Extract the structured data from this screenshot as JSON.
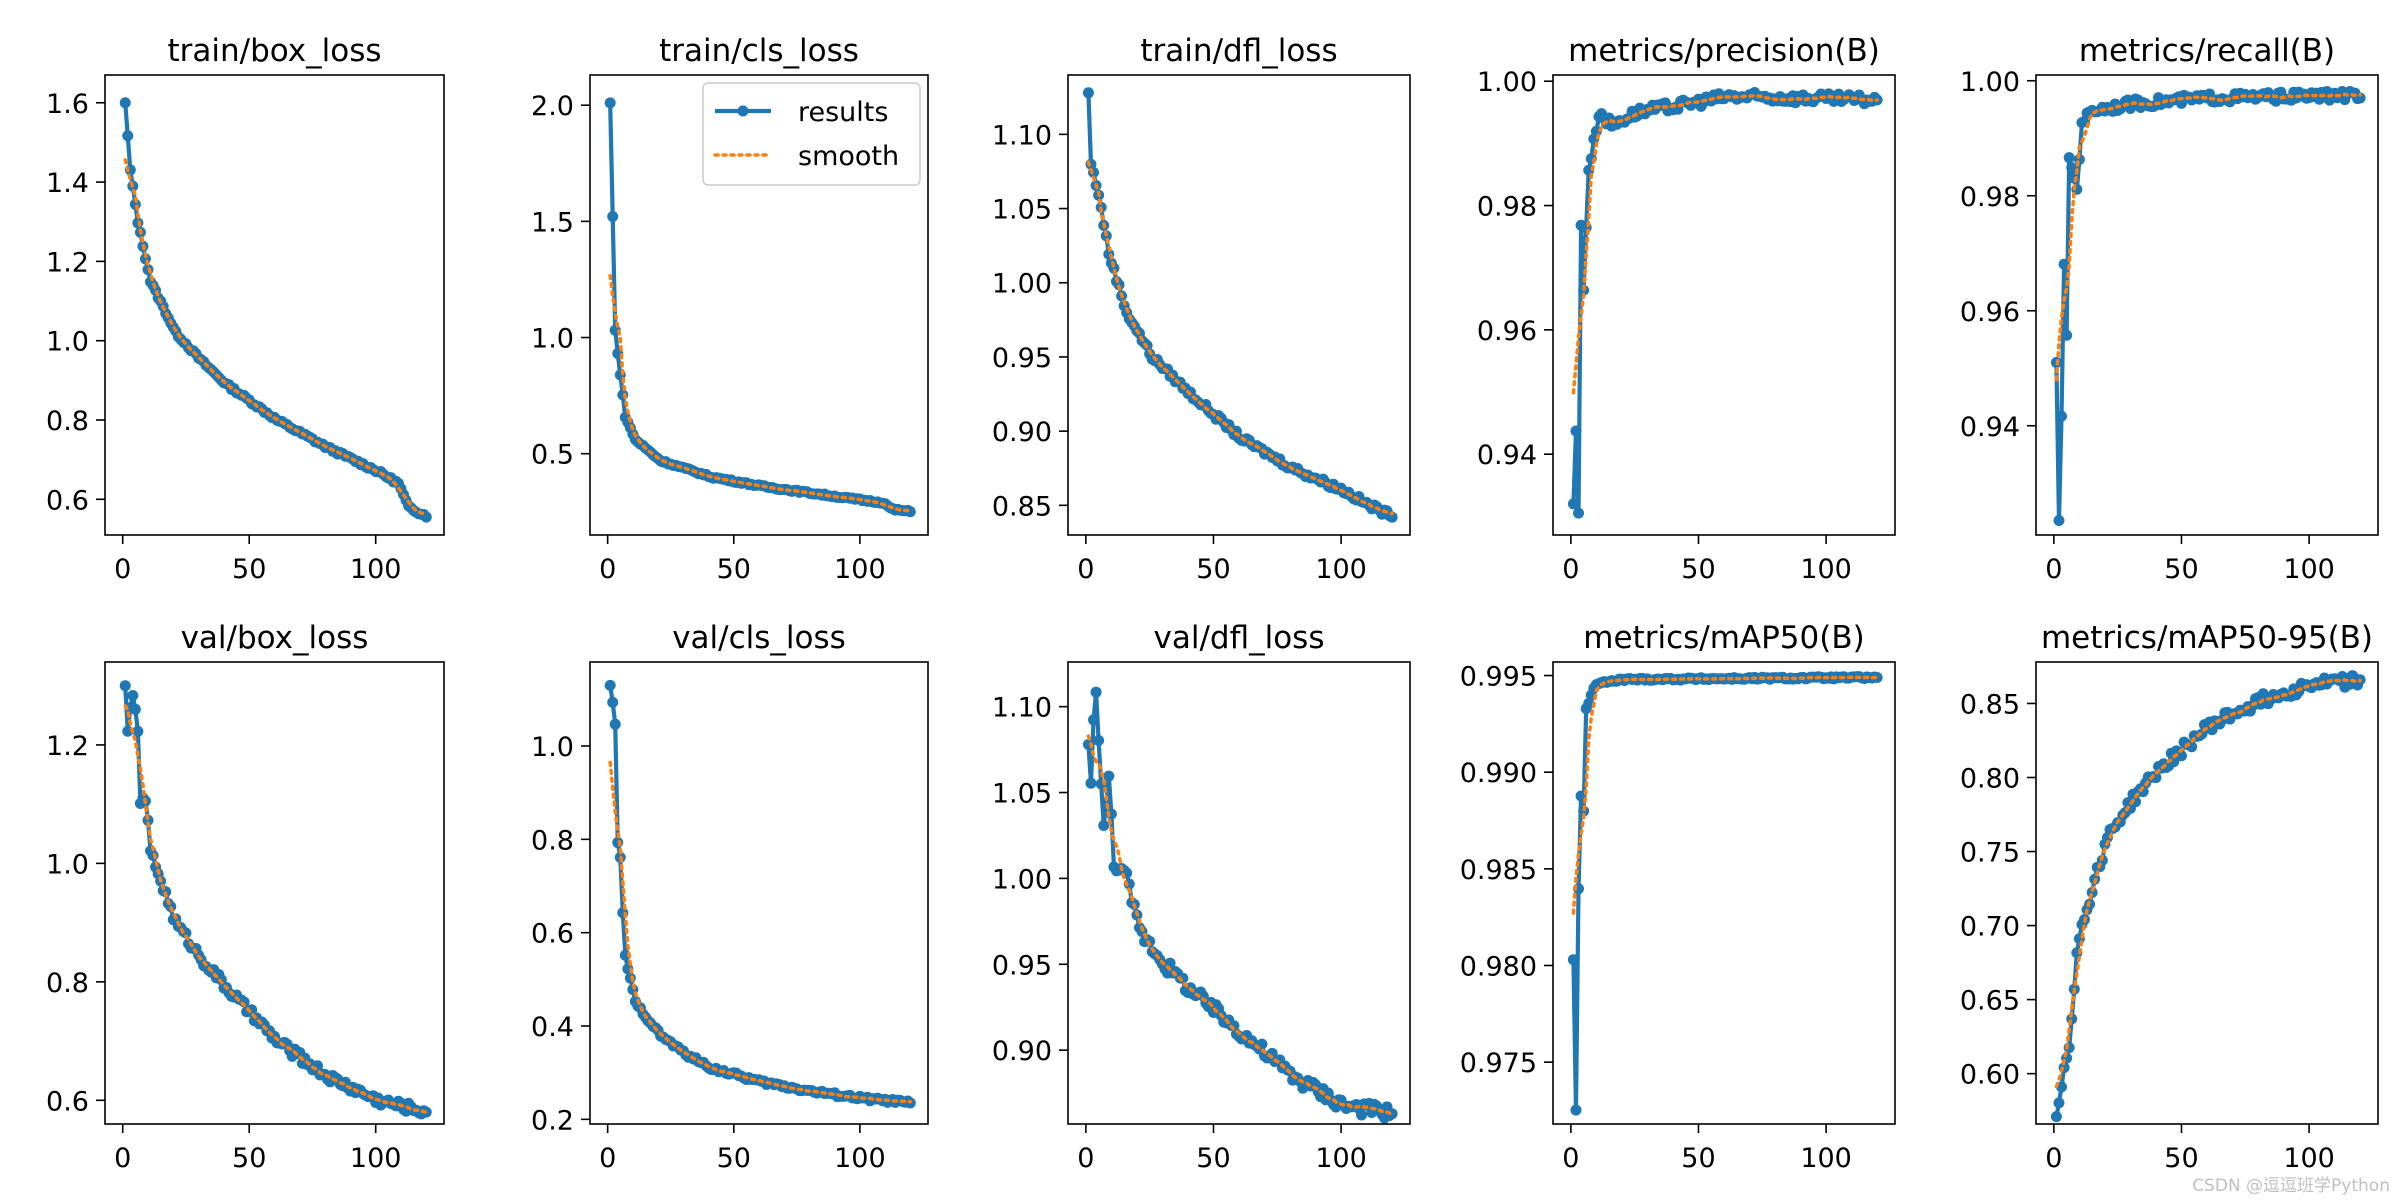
{
  "figure": {
    "watermark": "CSDN @逗逗班学Python",
    "colors": {
      "results": "#1f77b4",
      "smooth": "#ff7f0e"
    }
  },
  "chart_data": [
    {
      "type": "line",
      "title": "train/box_loss",
      "xlim": [
        -7,
        127
      ],
      "ylim": [
        0.51,
        1.67
      ],
      "xticks": [
        0,
        50,
        100
      ],
      "yticks": [
        0.6,
        0.8,
        1.0,
        1.2,
        1.4,
        1.6
      ],
      "ytick_labels": [
        "0.6",
        "0.8",
        "1.0",
        "1.2",
        "1.4",
        "1.6"
      ],
      "legend": false,
      "curve": {
        "start": 1.6,
        "end": 0.555,
        "knots": [
          [
            0,
            1.6
          ],
          [
            2,
            1.43
          ],
          [
            5,
            1.3
          ],
          [
            10,
            1.15
          ],
          [
            20,
            1.02
          ],
          [
            30,
            0.95
          ],
          [
            40,
            0.89
          ],
          [
            60,
            0.8
          ],
          [
            80,
            0.73
          ],
          [
            100,
            0.67
          ],
          [
            108,
            0.64
          ],
          [
            112,
            0.58
          ],
          [
            120,
            0.555
          ]
        ],
        "noise": 0.004
      }
    },
    {
      "type": "line",
      "title": "train/cls_loss",
      "xlim": [
        -7,
        127
      ],
      "ylim": [
        0.15,
        2.13
      ],
      "xticks": [
        0,
        50,
        100
      ],
      "yticks": [
        0.5,
        1.0,
        1.5,
        2.0
      ],
      "ytick_labels": [
        "0.5",
        "1.0",
        "1.5",
        "2.0"
      ],
      "legend": true,
      "legend_loc": "upper right",
      "series_names": [
        "results",
        "smooth"
      ],
      "curve": {
        "start": 2.01,
        "end": 0.25,
        "knots": [
          [
            0,
            2.01
          ],
          [
            2,
            1.03
          ],
          [
            4,
            0.84
          ],
          [
            6,
            0.66
          ],
          [
            10,
            0.56
          ],
          [
            20,
            0.47
          ],
          [
            40,
            0.4
          ],
          [
            60,
            0.36
          ],
          [
            80,
            0.33
          ],
          [
            100,
            0.3
          ],
          [
            108,
            0.29
          ],
          [
            112,
            0.26
          ],
          [
            120,
            0.25
          ]
        ],
        "noise": 0.004
      }
    },
    {
      "type": "line",
      "title": "train/dfl_loss",
      "xlim": [
        -7,
        127
      ],
      "ylim": [
        0.83,
        1.14
      ],
      "xticks": [
        0,
        50,
        100
      ],
      "yticks": [
        0.85,
        0.9,
        0.95,
        1.0,
        1.05,
        1.1
      ],
      "ytick_labels": [
        "0.85",
        "0.90",
        "0.95",
        "1.00",
        "1.05",
        "1.10"
      ],
      "legend": false,
      "curve": {
        "start": 1.128,
        "end": 0.842,
        "knots": [
          [
            0,
            1.128
          ],
          [
            1,
            1.08
          ],
          [
            4,
            1.06
          ],
          [
            8,
            1.02
          ],
          [
            15,
            0.98
          ],
          [
            25,
            0.95
          ],
          [
            40,
            0.925
          ],
          [
            60,
            0.895
          ],
          [
            80,
            0.875
          ],
          [
            100,
            0.86
          ],
          [
            110,
            0.85
          ],
          [
            120,
            0.842
          ]
        ],
        "noise": 0.002
      }
    },
    {
      "type": "line",
      "title": "metrics/precision(B)",
      "xlim": [
        -7,
        127
      ],
      "ylim": [
        0.927,
        1.001
      ],
      "xticks": [
        0,
        50,
        100
      ],
      "yticks": [
        0.94,
        0.96,
        0.98,
        1.0
      ],
      "ytick_labels": [
        "0.94",
        "0.96",
        "0.98",
        "1.00"
      ],
      "legend": false,
      "curve": {
        "start": 0.932,
        "end": 0.997,
        "knots": [
          [
            0,
            0.932
          ],
          [
            1,
            0.944
          ],
          [
            2,
            0.93
          ],
          [
            3,
            0.977
          ],
          [
            4,
            0.967
          ],
          [
            6,
            0.986
          ],
          [
            8,
            0.99
          ],
          [
            10,
            0.995
          ],
          [
            15,
            0.993
          ],
          [
            25,
            0.995
          ],
          [
            40,
            0.996
          ],
          [
            60,
            0.9975
          ],
          [
            120,
            0.997
          ]
        ],
        "noise": 0.0008
      }
    },
    {
      "type": "line",
      "title": "metrics/recall(B)",
      "xlim": [
        -7,
        127
      ],
      "ylim": [
        0.921,
        1.001
      ],
      "xticks": [
        0,
        50,
        100
      ],
      "yticks": [
        0.94,
        0.96,
        0.98,
        1.0
      ],
      "ytick_labels": [
        "0.94",
        "0.96",
        "0.98",
        "1.00"
      ],
      "legend": false,
      "curve": {
        "start": 0.951,
        "end": 0.997,
        "knots": [
          [
            0,
            0.951
          ],
          [
            1,
            0.924
          ],
          [
            2,
            0.941
          ],
          [
            3,
            0.968
          ],
          [
            4,
            0.955
          ],
          [
            5,
            0.987
          ],
          [
            8,
            0.981
          ],
          [
            10,
            0.993
          ],
          [
            15,
            0.995
          ],
          [
            30,
            0.996
          ],
          [
            60,
            0.997
          ],
          [
            120,
            0.9975
          ]
        ],
        "noise": 0.0008
      }
    },
    {
      "type": "line",
      "title": "val/box_loss",
      "xlim": [
        -7,
        127
      ],
      "ylim": [
        0.56,
        1.34
      ],
      "xticks": [
        0,
        50,
        100
      ],
      "yticks": [
        0.6,
        0.8,
        1.0,
        1.2
      ],
      "ytick_labels": [
        "0.6",
        "0.8",
        "1.0",
        "1.2"
      ],
      "legend": false,
      "curve": {
        "start": 1.3,
        "end": 0.58,
        "knots": [
          [
            0,
            1.3
          ],
          [
            1,
            1.23
          ],
          [
            3,
            1.28
          ],
          [
            5,
            1.23
          ],
          [
            6,
            1.1
          ],
          [
            8,
            1.11
          ],
          [
            10,
            1.02
          ],
          [
            15,
            0.96
          ],
          [
            20,
            0.9
          ],
          [
            30,
            0.84
          ],
          [
            40,
            0.79
          ],
          [
            60,
            0.7
          ],
          [
            80,
            0.64
          ],
          [
            100,
            0.6
          ],
          [
            120,
            0.58
          ]
        ],
        "noise": 0.008
      }
    },
    {
      "type": "line",
      "title": "val/cls_loss",
      "xlim": [
        -7,
        127
      ],
      "ylim": [
        0.19,
        1.18
      ],
      "xticks": [
        0,
        50,
        100
      ],
      "yticks": [
        0.2,
        0.4,
        0.6,
        0.8,
        1.0
      ],
      "ytick_labels": [
        "0.2",
        "0.4",
        "0.6",
        "0.8",
        "1.0"
      ],
      "legend": false,
      "curve": {
        "start": 1.13,
        "end": 0.235,
        "knots": [
          [
            0,
            1.13
          ],
          [
            2,
            1.05
          ],
          [
            3,
            0.79
          ],
          [
            4,
            0.76
          ],
          [
            5,
            0.64
          ],
          [
            6,
            0.55
          ],
          [
            8,
            0.5
          ],
          [
            10,
            0.45
          ],
          [
            20,
            0.38
          ],
          [
            30,
            0.34
          ],
          [
            40,
            0.31
          ],
          [
            60,
            0.28
          ],
          [
            80,
            0.26
          ],
          [
            100,
            0.245
          ],
          [
            120,
            0.235
          ]
        ],
        "noise": 0.004
      }
    },
    {
      "type": "line",
      "title": "val/dfl_loss",
      "xlim": [
        -7,
        127
      ],
      "ylim": [
        0.857,
        1.126
      ],
      "xticks": [
        0,
        50,
        100
      ],
      "yticks": [
        0.9,
        0.95,
        1.0,
        1.05,
        1.1
      ],
      "ytick_labels": [
        "0.90",
        "0.95",
        "1.00",
        "1.05",
        "1.10"
      ],
      "legend": false,
      "curve": {
        "start": 1.078,
        "end": 0.863,
        "knots": [
          [
            0,
            1.078
          ],
          [
            1,
            1.053
          ],
          [
            2,
            1.095
          ],
          [
            3,
            1.112
          ],
          [
            4,
            1.08
          ],
          [
            6,
            1.028
          ],
          [
            8,
            1.06
          ],
          [
            10,
            1.01
          ],
          [
            15,
            1.0
          ],
          [
            20,
            0.97
          ],
          [
            30,
            0.95
          ],
          [
            40,
            0.935
          ],
          [
            60,
            0.91
          ],
          [
            80,
            0.885
          ],
          [
            100,
            0.868
          ],
          [
            120,
            0.863
          ]
        ],
        "noise": 0.004
      }
    },
    {
      "type": "line",
      "title": "metrics/mAP50(B)",
      "xlim": [
        -7,
        127
      ],
      "ylim": [
        0.9718,
        0.9957
      ],
      "xticks": [
        0,
        50,
        100
      ],
      "yticks": [
        0.975,
        0.98,
        0.985,
        0.99,
        0.995
      ],
      "ytick_labels": [
        "0.975",
        "0.980",
        "0.985",
        "0.990",
        "0.995"
      ],
      "legend": false,
      "curve": {
        "start": 0.9803,
        "end": 0.9949,
        "knots": [
          [
            0,
            0.9803
          ],
          [
            1,
            0.9725
          ],
          [
            2,
            0.984
          ],
          [
            3,
            0.9888
          ],
          [
            4,
            0.988
          ],
          [
            5,
            0.9933
          ],
          [
            6,
            0.9935
          ],
          [
            8,
            0.9944
          ],
          [
            10,
            0.9946
          ],
          [
            20,
            0.9948
          ],
          [
            120,
            0.9949
          ]
        ],
        "noise": 6e-05
      }
    },
    {
      "type": "line",
      "title": "metrics/mAP50-95(B)",
      "xlim": [
        -7,
        127
      ],
      "ylim": [
        0.566,
        0.878
      ],
      "xticks": [
        0,
        50,
        100
      ],
      "yticks": [
        0.6,
        0.65,
        0.7,
        0.75,
        0.8,
        0.85
      ],
      "ytick_labels": [
        "0.60",
        "0.65",
        "0.70",
        "0.75",
        "0.80",
        "0.85"
      ],
      "legend": false,
      "curve": {
        "start": 0.571,
        "end": 0.866,
        "knots": [
          [
            0,
            0.571
          ],
          [
            1,
            0.58
          ],
          [
            3,
            0.605
          ],
          [
            5,
            0.62
          ],
          [
            8,
            0.68
          ],
          [
            10,
            0.7
          ],
          [
            15,
            0.73
          ],
          [
            20,
            0.76
          ],
          [
            30,
            0.785
          ],
          [
            40,
            0.805
          ],
          [
            60,
            0.835
          ],
          [
            80,
            0.852
          ],
          [
            100,
            0.863
          ],
          [
            120,
            0.866
          ]
        ],
        "noise": 0.004
      }
    }
  ]
}
